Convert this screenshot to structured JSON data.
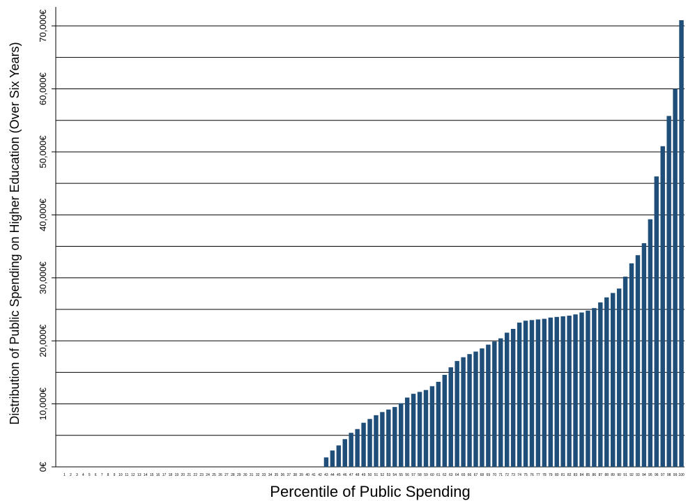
{
  "chart_data": {
    "type": "bar",
    "title": "",
    "xlabel": "Percentile of Public Spending",
    "ylabel": "Distribution of Public Spending on Higher Education (Over Six Years)",
    "ylim": [
      0,
      73000
    ],
    "yticks": [
      0,
      10000,
      20000,
      30000,
      40000,
      50000,
      60000,
      70000
    ],
    "ytick_labels": [
      "0€",
      "10,000€",
      "20,000€",
      "30,000€",
      "40,000€",
      "50,000€",
      "60,000€",
      "70,000€"
    ],
    "grid_y_step": 5000,
    "grid": true,
    "bar_color": "#1f4e79",
    "categories": [
      "1",
      "2",
      "3",
      "4",
      "5",
      "6",
      "7",
      "8",
      "9",
      "10",
      "11",
      "12",
      "13",
      "14",
      "15",
      "16",
      "17",
      "18",
      "19",
      "20",
      "21",
      "22",
      "23",
      "24",
      "25",
      "26",
      "27",
      "28",
      "29",
      "30",
      "31",
      "32",
      "33",
      "34",
      "35",
      "36",
      "37",
      "38",
      "39",
      "40",
      "41",
      "42",
      "43",
      "44",
      "45",
      "46",
      "47",
      "48",
      "49",
      "50",
      "51",
      "52",
      "53",
      "54",
      "55",
      "56",
      "57",
      "58",
      "59",
      "60",
      "61",
      "62",
      "63",
      "64",
      "65",
      "66",
      "67",
      "68",
      "69",
      "70",
      "71",
      "72",
      "73",
      "74",
      "75",
      "76",
      "77",
      "78",
      "79",
      "80",
      "81",
      "82",
      "83",
      "84",
      "85",
      "86",
      "87",
      "88",
      "89",
      "90",
      "91",
      "92",
      "93",
      "94",
      "95",
      "96",
      "97",
      "98",
      "99",
      "100"
    ],
    "values": [
      0,
      0,
      0,
      0,
      0,
      0,
      0,
      0,
      0,
      0,
      0,
      0,
      0,
      0,
      0,
      0,
      0,
      0,
      0,
      0,
      0,
      0,
      0,
      0,
      0,
      0,
      0,
      0,
      0,
      0,
      0,
      0,
      0,
      0,
      0,
      0,
      0,
      0,
      0,
      0,
      0,
      0,
      1500,
      2600,
      3400,
      4400,
      5400,
      6000,
      7000,
      7600,
      8200,
      8700,
      9100,
      9500,
      10100,
      11000,
      11600,
      11900,
      12200,
      12800,
      13500,
      14600,
      15800,
      16800,
      17400,
      17900,
      18300,
      18800,
      19400,
      19900,
      20400,
      21300,
      21900,
      22900,
      23200,
      23300,
      23400,
      23500,
      23700,
      23800,
      23900,
      24000,
      24200,
      24500,
      24800,
      25200,
      26100,
      26900,
      27600,
      28300,
      30200,
      32300,
      33600,
      35500,
      39300,
      46100,
      50900,
      55700,
      60000,
      70900
    ]
  }
}
